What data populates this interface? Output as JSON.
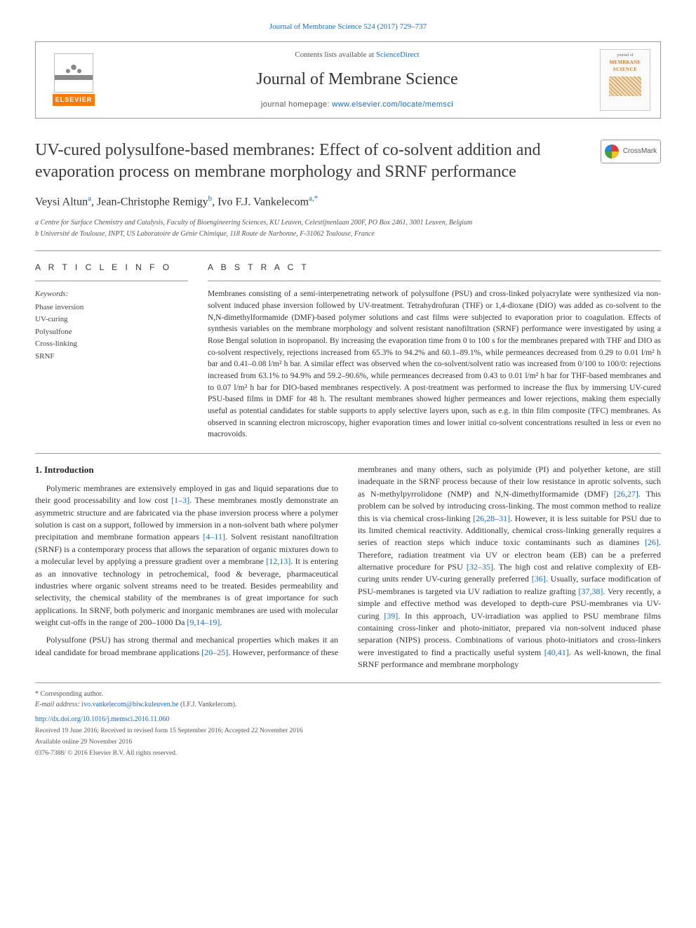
{
  "journal_ref": "Journal of Membrane Science 524 (2017) 729–737",
  "header": {
    "contents_prefix": "Contents lists available at ",
    "contents_link": "ScienceDirect",
    "journal_name": "Journal of Membrane Science",
    "homepage_prefix": "journal homepage: ",
    "homepage_link": "www.elsevier.com/locate/memsci",
    "publisher": "ELSEVIER",
    "thumb_line1": "journal of",
    "thumb_line2": "MEMBRANE",
    "thumb_line3": "SCIENCE"
  },
  "title": "UV-cured polysulfone-based membranes: Effect of co-solvent addition and evaporation process on membrane morphology and SRNF performance",
  "crossmark": "CrossMark",
  "authors_html": "Veysi Altun<sup>a</sup>, Jean-Christophe Remigy<sup>b</sup>, Ivo F.J. Vankelecom<sup>a,*</sup>",
  "authors": [
    {
      "name": "Veysi Altun",
      "aff": "a"
    },
    {
      "name": "Jean-Christophe Remigy",
      "aff": "b"
    },
    {
      "name": "Ivo F.J. Vankelecom",
      "aff": "a,*"
    }
  ],
  "affiliations": [
    "a Centre for Surface Chemistry and Catalysis, Faculty of Bioengineering Sciences, KU Leuven, Celestijnenlaan 200F, PO Box 2461, 3001 Leuven, Belgium",
    "b Université de Toulouse, INPT, US Laboratoire de Génie Chimique, 118 Route de Narbonne, F-31062 Toulouse, France"
  ],
  "article_info_head": "A R T I C L E  I N F O",
  "abstract_head": "A B S T R A C T",
  "keywords_label": "Keywords:",
  "keywords": [
    "Phase inversion",
    "UV-curing",
    "Polysulfone",
    "Cross-linking",
    "SRNF"
  ],
  "abstract": "Membranes consisting of a semi-interpenetrating network of polysulfone (PSU) and cross-linked polyacrylate were synthesized via non-solvent induced phase inversion followed by UV-treatment. Tetrahydrofuran (THF) or 1,4-dioxane (DIO) was added as co-solvent to the N,N-dimethylformamide (DMF)-based polymer solutions and cast films were subjected to evaporation prior to coagulation. Effects of synthesis variables on the membrane morphology and solvent resistant nanofiltration (SRNF) performance were investigated by using a Rose Bengal solution in isopropanol. By increasing the evaporation time from 0 to 100 s for the membranes prepared with THF and DIO as co-solvent respectively, rejections increased from 65.3% to 94.2% and 60.1–89.1%, while permeances decreased from 0.29 to 0.01 l/m² h bar and 0.41–0.08 l/m² h bar. A similar effect was observed when the co-solvent/solvent ratio was increased from 0/100 to 100/0: rejections increased from 63.1% to 94.9% and 59.2–90.6%, while permeances decreased from 0.43 to 0.01 l/m² h bar for THF-based membranes and to 0.07 l/m² h bar for DIO-based membranes respectively. A post-treatment was performed to increase the flux by immersing UV-cured PSU-based films in DMF for 48 h. The resultant membranes showed higher permeances and lower rejections, making them especially useful as potential candidates for stable supports to apply selective layers upon, such as e.g. in thin film composite (TFC) membranes. As observed in scanning electron microscopy, higher evaporation times and lower initial co-solvent concentrations resulted in less or even no macrovoids.",
  "intro_head": "1. Introduction",
  "intro_para1_a": "Polymeric membranes are extensively employed in gas and liquid separations due to their good processability and low cost ",
  "intro_para1_ref1": "[1–3]",
  "intro_para1_b": ". These membranes mostly demonstrate an asymmetric structure and are fabricated via the phase inversion process where a polymer solution is cast on a support, followed by immersion in a non-solvent bath where polymer precipitation and membrane formation appears ",
  "intro_para1_ref2": "[4–11]",
  "intro_para1_c": ". Solvent resistant nanofiltration (SRNF) is a contemporary process that allows the separation of organic mixtures down to a molecular level by applying a pressure gradient over a membrane ",
  "intro_para1_ref3": "[12,13]",
  "intro_para1_d": ". It is entering as an innovative technology in petrochemical, food & beverage, pharmaceutical industries where organic solvent streams need to be treated. Besides permeability and selectivity, the chemical stability of the membranes is of great importance for such applications. In SRNF, both polymeric and inorganic membranes are used with molecular weight cut-offs in the range of 200–1000 Da ",
  "intro_para1_ref4": "[9,14–19]",
  "intro_para1_e": ".",
  "intro_para2_a": "Polysulfone (PSU) has strong thermal and mechanical properties which makes it an ideal candidate for broad membrane applications ",
  "intro_para2_ref1": "[20–25]",
  "intro_para2_b": ". However, performance of these membranes and many others, such as polyimide (PI) and polyether ketone, are still inadequate in the SRNF process because of their low resistance in aprotic solvents, such as N-methylpyrrolidone (NMP) and N,N-dimethylformamide (DMF) ",
  "intro_para2_ref2": "[26,27]",
  "intro_para2_c": ". This problem can be solved by introducing cross-linking. The most common method to realize this is via chemical cross-linking ",
  "intro_para2_ref3": "[26,28–31]",
  "intro_para2_d": ". However, it is less suitable for PSU due to its limited chemical reactivity. Additionally, chemical cross-linking generally requires a series of reaction steps which induce toxic contaminants such as diamines ",
  "intro_para2_ref4": "[26]",
  "intro_para2_e": ". Therefore, radiation treatment via UV or electron beam (EB) can be a preferred alternative procedure for PSU ",
  "intro_para2_ref5": "[32–35]",
  "intro_para2_f": ". The high cost and relative complexity of EB-curing units render UV-curing generally preferred ",
  "intro_para2_ref6": "[36]",
  "intro_para2_g": ". Usually, surface modification of PSU-membranes is targeted via UV radiation to realize grafting ",
  "intro_para2_ref7": "[37,38]",
  "intro_para2_h": ". Very recently, a simple and effective method was developed to depth-cure PSU-membranes via UV-curing ",
  "intro_para2_ref8": "[39]",
  "intro_para2_i": ". In this approach, UV-irradiation was applied to PSU membrane films containing cross-linker and photo-initiator, prepared via non-solvent induced phase separation (NIPS) process. Combinations of various photo-initiators and cross-linkers were investigated to find a practically useful system ",
  "intro_para2_ref9": "[40,41]",
  "intro_para2_j": ". As well-known, the final SRNF performance and membrane morphology",
  "footer": {
    "corr": "* Corresponding author.",
    "email_label": "E-mail address: ",
    "email": "ivo.vankelecom@biw.kuleuven.be",
    "email_person": " (I.F.J. Vankelecom).",
    "doi": "http://dx.doi.org/10.1016/j.memsci.2016.11.060",
    "received": "Received 19 June 2016; Received in revised form 15 September 2016; Accepted 22 November 2016",
    "available": "Available online 29 November 2016",
    "copyright": "0376-7388/ © 2016 Elsevier B.V. All rights reserved."
  },
  "colors": {
    "link": "#1a6bb8",
    "text": "#333333",
    "rule": "#999999",
    "elsevier_orange": "#ff7a00"
  }
}
